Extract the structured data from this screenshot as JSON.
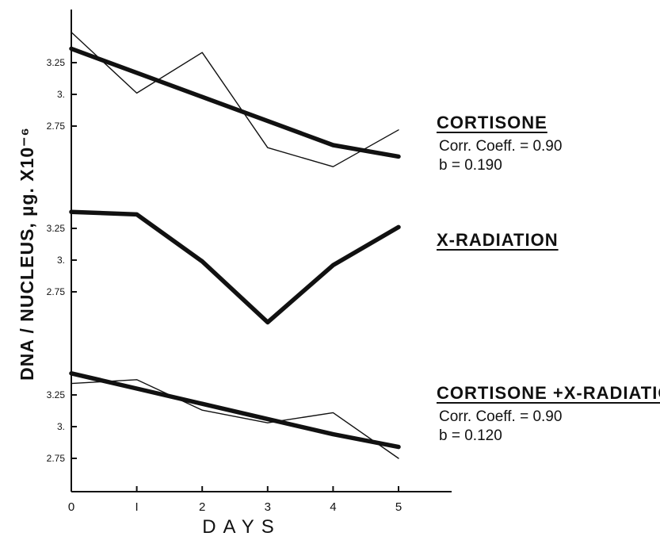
{
  "chart_data": {
    "type": "line",
    "ylabel": "DNA / NUCLEUS, µg.  X10⁻⁶",
    "xlabel": "DAYS",
    "x": [
      0,
      1,
      2,
      3,
      4,
      5
    ],
    "x_tick_labels": [
      "0",
      "I",
      "2",
      "3",
      "4",
      "5"
    ],
    "grid": false,
    "panels": [
      {
        "title": "CORTISONE",
        "stats": [
          "Corr. Coeff. = 0.90",
          "b = 0.190"
        ],
        "y_tick_values": [
          3.25,
          3.0,
          2.75
        ],
        "y_tick_labels": [
          "3.25",
          "3.",
          "2.75"
        ],
        "series": [
          {
            "style": "thin",
            "values": [
              3.49,
              3.01,
              3.33,
              2.58,
              2.43,
              2.72
            ]
          },
          {
            "style": "thick",
            "values": [
              3.36,
              3.17,
              2.98,
              2.79,
              2.6,
              2.51
            ]
          }
        ]
      },
      {
        "title": "X-RADIATION",
        "stats": [],
        "y_tick_values": [
          3.25,
          3.0,
          2.75
        ],
        "y_tick_labels": [
          "3.25",
          "3.",
          "2.75"
        ],
        "series": [
          {
            "style": "thick",
            "values": [
              3.38,
              3.36,
              2.99,
              2.51,
              2.96,
              3.26
            ]
          }
        ]
      },
      {
        "title": "CORTISONE +X-RADIATION",
        "stats": [
          "Corr. Coeff. = 0.90",
          "b = 0.120"
        ],
        "y_tick_values": [
          3.25,
          3.0,
          2.75
        ],
        "y_tick_labels": [
          "3.25",
          "3.",
          "2.75"
        ],
        "series": [
          {
            "style": "thin",
            "values": [
              3.34,
              3.37,
              3.13,
              3.03,
              3.11,
              2.75
            ]
          },
          {
            "style": "thick",
            "values": [
              3.42,
              3.3,
              3.18,
              3.06,
              2.94,
              2.84
            ]
          }
        ]
      }
    ]
  }
}
